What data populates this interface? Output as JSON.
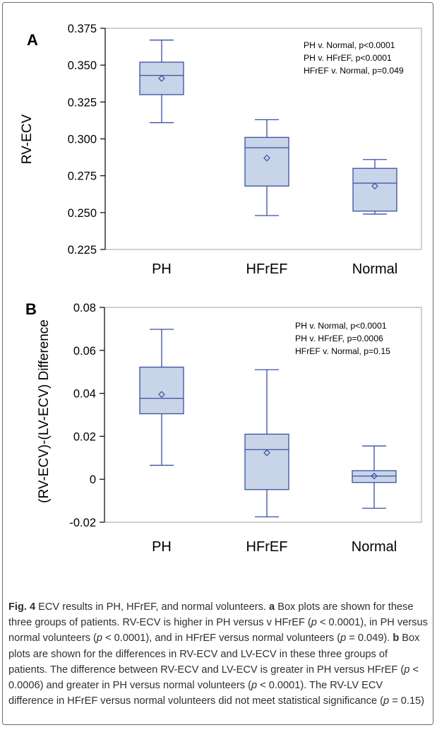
{
  "chart_data": [
    {
      "type": "box",
      "panel_label": "A",
      "title": "",
      "xlabel": "",
      "ylabel": "RV-ECV",
      "categories": [
        "PH",
        "HFrEF",
        "Normal"
      ],
      "ylim": [
        0.225,
        0.375
      ],
      "yticks": [
        0.225,
        0.25,
        0.275,
        0.3,
        0.325,
        0.35,
        0.375
      ],
      "ytick_labels": [
        "0.225",
        "0.250",
        "0.275",
        "0.300",
        "0.325",
        "0.350",
        "0.375"
      ],
      "boxes": [
        {
          "category": "PH",
          "whisker_low": 0.311,
          "q1": 0.33,
          "median": 0.343,
          "q3": 0.352,
          "whisker_high": 0.367,
          "mean": 0.341
        },
        {
          "category": "HFrEF",
          "whisker_low": 0.248,
          "q1": 0.268,
          "median": 0.294,
          "q3": 0.301,
          "whisker_high": 0.313,
          "mean": 0.287
        },
        {
          "category": "Normal",
          "whisker_low": 0.249,
          "q1": 0.251,
          "median": 0.27,
          "q3": 0.28,
          "whisker_high": 0.286,
          "mean": 0.268
        }
      ],
      "annotations": [
        "PH v. Normal, p<0.0001",
        "PH v. HFrEF, p<0.0001",
        "HFrEF v. Normal, p=0.049"
      ],
      "grid": false,
      "colors": {
        "box_fill": "#c8d4e8",
        "box_stroke": "#3a4fa0",
        "axis": "#000000"
      }
    },
    {
      "type": "box",
      "panel_label": "B",
      "title": "",
      "xlabel": "",
      "ylabel": "(RV-ECV)-(LV-ECV) Difference",
      "categories": [
        "PH",
        "HFrEF",
        "Normal"
      ],
      "ylim": [
        -0.02,
        0.08
      ],
      "yticks": [
        -0.02,
        0,
        0.02,
        0.04,
        0.06,
        0.08
      ],
      "ytick_labels": [
        "-0.02",
        "0",
        "0.02",
        "0.04",
        "0.06",
        "0.08"
      ],
      "boxes": [
        {
          "category": "PH",
          "whisker_low": 0.0065,
          "q1": 0.0305,
          "median": 0.0377,
          "q3": 0.0522,
          "whisker_high": 0.0698,
          "mean": 0.0395
        },
        {
          "category": "HFrEF",
          "whisker_low": -0.0175,
          "q1": -0.0048,
          "median": 0.0138,
          "q3": 0.021,
          "whisker_high": 0.051,
          "mean": 0.0123
        },
        {
          "category": "Normal",
          "whisker_low": -0.0135,
          "q1": -0.0015,
          "median": 0.0015,
          "q3": 0.004,
          "whisker_high": 0.0155,
          "mean": 0.0015
        }
      ],
      "annotations": [
        "PH v. Normal, p<0.0001",
        "PH v. HFrEF, p=0.0006",
        "HFrEF v. Normal, p=0.15"
      ],
      "grid": false,
      "colors": {
        "box_fill": "#c8d4e8",
        "box_stroke": "#3a4fa0",
        "axis": "#000000"
      }
    }
  ],
  "caption": {
    "fig_label": "Fig. 4",
    "t1": " ECV results in PH, HFrEF, and normal volunteers. ",
    "a": "a",
    "t2": " Box plots are shown for these three groups of patients. RV-ECV is higher in PH versus v HFrEF (",
    "p1": "p",
    "t3": " < 0.0001), in PH versus normal volunteers (",
    "p2": "p",
    "t4": " < 0.0001), and in HFrEF versus normal volunteers (",
    "p3": "p",
    "t5": " = 0.049). ",
    "b": "b",
    "t6": " Box plots are shown for the differences in RV-ECV and LV-ECV in these three groups of patients. The difference between RV-ECV and LV-ECV is greater in PH versus HFrEF (",
    "p4": "p",
    "t7": " < 0.0006) and greater in PH versus normal volunteers (",
    "p5": "p",
    "t8": " < 0.0001). The RV-LV ECV difference in HFrEF versus normal volunteers did not meet statistical significance (",
    "p6": "p",
    "t9": " = 0.15)"
  }
}
